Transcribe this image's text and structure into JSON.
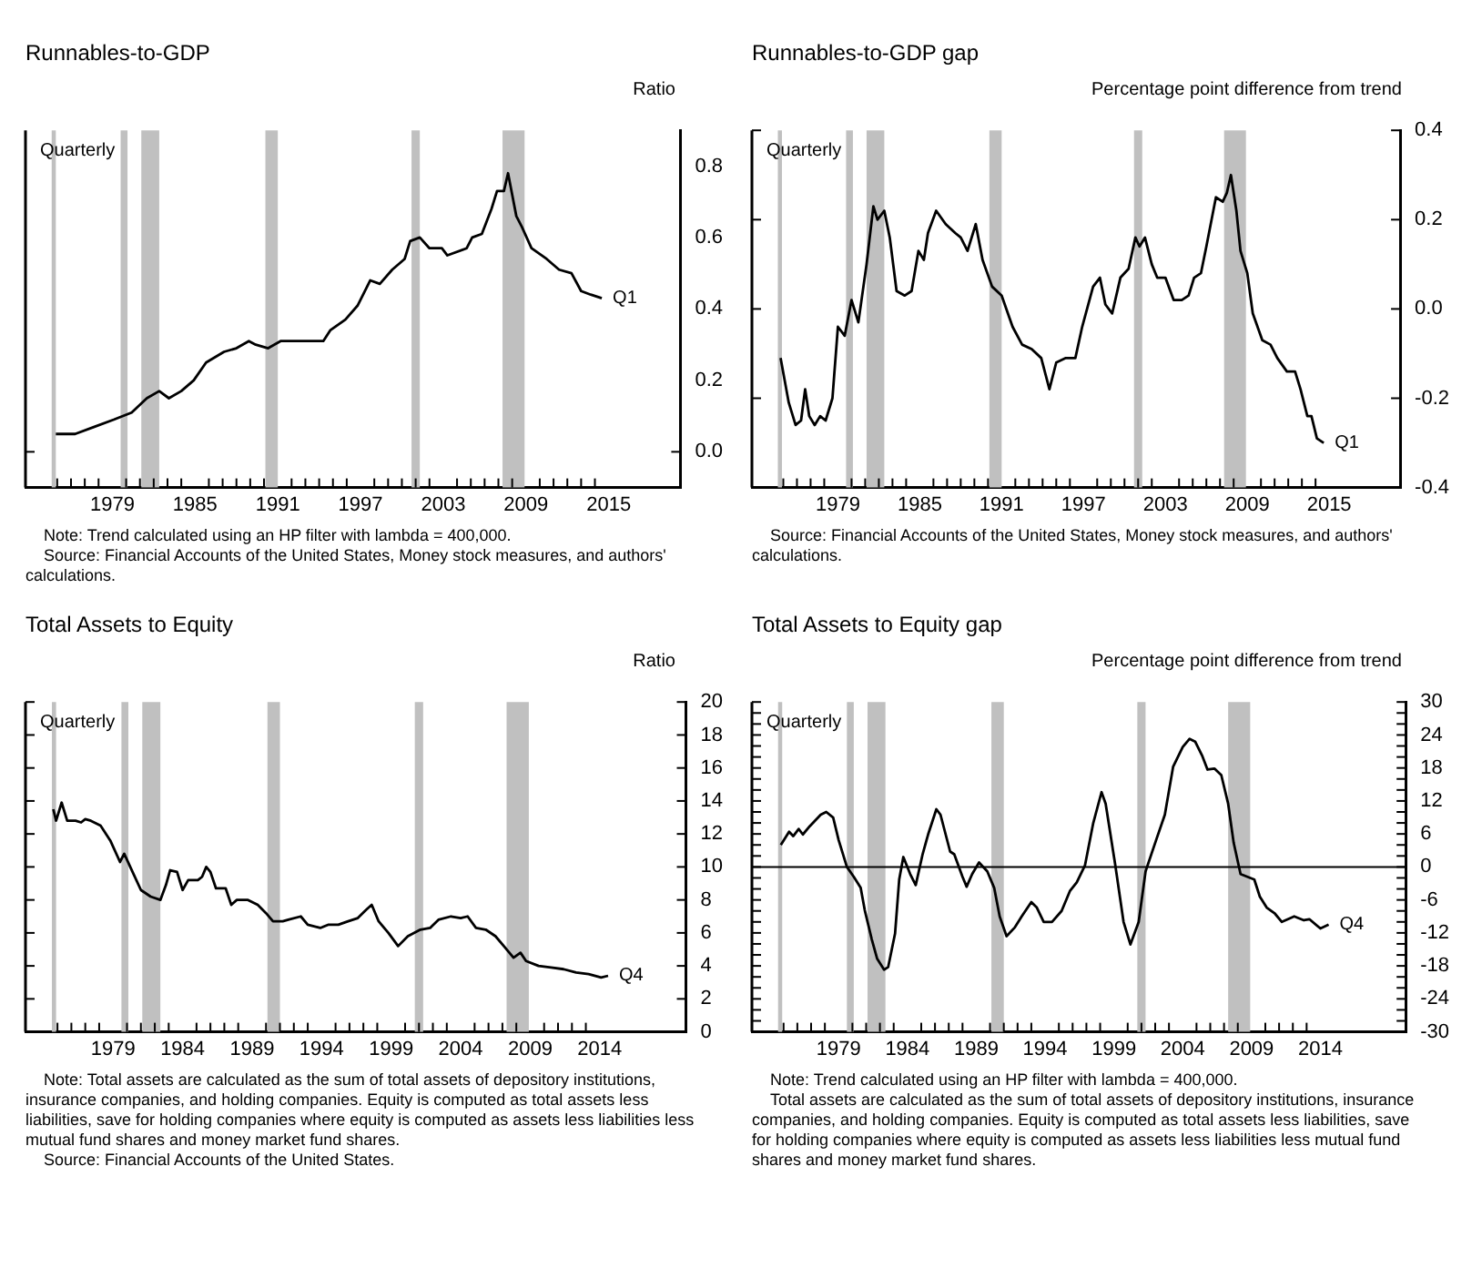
{
  "chart_data": [
    {
      "type": "line",
      "title": "Runnables-to-GDP",
      "ylabel": "Ratio",
      "color": "#000000",
      "annotations": [
        "Quarterly",
        "Q1",
        "Note: Trend calculated using an HP filter with lambda = 400,000.",
        "Source: Financial Accounts of the United States, Money stock measures, and authors' calculations."
      ],
      "x": [
        1974.9,
        1976.3,
        1977.7,
        1979.1,
        1980.4,
        1981.5,
        1982.4,
        1983.1,
        1984.0,
        1984.9,
        1985.8,
        1987.1,
        1988.0,
        1988.9,
        1989.4,
        1990.3,
        1991.2,
        1992.5,
        1993.4,
        1994.3,
        1994.8,
        1995.9,
        1996.8,
        1997.7,
        1998.4,
        1999.3,
        2000.2,
        2000.6,
        2001.3,
        2002.0,
        2002.9,
        2003.3,
        2004.7,
        2005.1,
        2005.8,
        2006.5,
        2006.9,
        2007.4,
        2007.7,
        2008.3,
        2008.7,
        2009.4,
        2010.5,
        2011.4,
        2012.3,
        2013.0,
        2013.7,
        2014.5
      ],
      "values": [
        0.05,
        0.05,
        0.07,
        0.09,
        0.11,
        0.15,
        0.17,
        0.15,
        0.17,
        0.2,
        0.25,
        0.28,
        0.29,
        0.31,
        0.3,
        0.29,
        0.31,
        0.31,
        0.31,
        0.31,
        0.34,
        0.37,
        0.41,
        0.48,
        0.47,
        0.51,
        0.54,
        0.59,
        0.6,
        0.57,
        0.57,
        0.55,
        0.57,
        0.6,
        0.61,
        0.68,
        0.73,
        0.73,
        0.78,
        0.66,
        0.63,
        0.57,
        0.54,
        0.51,
        0.5,
        0.45,
        0.44,
        0.43
      ],
      "xlim": [
        1972.7,
        2020.2
      ],
      "xticks": [
        {
          "value": 1975,
          "label": null
        },
        {
          "value": 1976,
          "label": null
        },
        {
          "value": 1977,
          "label": null
        },
        {
          "value": 1978,
          "label": null
        },
        1979,
        {
          "value": 1980,
          "label": null
        },
        {
          "value": 1981,
          "label": null
        },
        {
          "value": 1982,
          "label": null
        },
        {
          "value": 1983,
          "label": null
        },
        {
          "value": 1984,
          "label": null
        },
        1985,
        {
          "value": 1986,
          "label": null
        },
        {
          "value": 1987,
          "label": null
        },
        {
          "value": 1988,
          "label": null
        },
        {
          "value": 1989,
          "label": null
        },
        {
          "value": 1990,
          "label": null
        },
        1991,
        {
          "value": 1992,
          "label": null
        },
        {
          "value": 1993,
          "label": null
        },
        {
          "value": 1994,
          "label": null
        },
        {
          "value": 1995,
          "label": null
        },
        {
          "value": 1996,
          "label": null
        },
        1997,
        {
          "value": 1998,
          "label": null
        },
        {
          "value": 1999,
          "label": null
        },
        {
          "value": 2000,
          "label": null
        },
        {
          "value": 2001,
          "label": null
        },
        {
          "value": 2002,
          "label": null
        },
        2003,
        {
          "value": 2004,
          "label": null
        },
        {
          "value": 2005,
          "label": null
        },
        {
          "value": 2006,
          "label": null
        },
        {
          "value": 2007,
          "label": null
        },
        {
          "value": 2008,
          "label": null
        },
        2009,
        {
          "value": 2010,
          "label": null
        },
        {
          "value": 2011,
          "label": null
        },
        {
          "value": 2012,
          "label": null
        },
        {
          "value": 2013,
          "label": null
        },
        {
          "value": 2014,
          "label": null
        },
        2015
      ],
      "ylim": [
        -0.1,
        0.9
      ],
      "yticks": [
        {
          "value": 0,
          "label": "0.0"
        },
        0.2,
        0.4,
        0.6,
        0.8
      ],
      "bands": [
        {
          "axis": "x",
          "from": 1974.6,
          "to": 1974.9,
          "color": "#c0c0c0"
        },
        {
          "axis": "x",
          "from": 1979.6,
          "to": 1980.1,
          "color": "#c0c0c0"
        },
        {
          "axis": "x",
          "from": 1981.1,
          "to": 1982.4,
          "color": "#c0c0c0"
        },
        {
          "axis": "x",
          "from": 1990.1,
          "to": 1991.0,
          "color": "#c0c0c0"
        },
        {
          "axis": "x",
          "from": 2000.7,
          "to": 2001.3,
          "color": "#c0c0c0"
        },
        {
          "axis": "x",
          "from": 2007.3,
          "to": 2008.9,
          "color": "#c0c0c0"
        }
      ]
    },
    {
      "type": "line",
      "title": "Runnables-to-GDP gap",
      "ylabel": "Percentage point difference from trend",
      "color": "#000000",
      "annotations": [
        "Quarterly",
        "Q1",
        "Source: Financial Accounts of the United States, Money stock measures, and authors' calculations."
      ],
      "x": [
        1974.8,
        1975.4,
        1975.9,
        1976.3,
        1976.6,
        1976.9,
        1977.3,
        1977.7,
        1978.1,
        1978.6,
        1979.0,
        1979.5,
        1980.0,
        1980.5,
        1981.1,
        1981.6,
        1981.9,
        1982.4,
        1982.8,
        1983.3,
        1983.9,
        1984.4,
        1984.9,
        1985.3,
        1985.6,
        1986.2,
        1986.9,
        1987.6,
        1988.0,
        1988.5,
        1989.1,
        1989.6,
        1990.3,
        1991.0,
        1991.8,
        1992.5,
        1993.2,
        1993.9,
        1994.5,
        1995.0,
        1995.7,
        1996.4,
        1996.9,
        1997.7,
        1998.2,
        1998.6,
        1999.1,
        1999.7,
        2000.3,
        2000.8,
        2001.1,
        2001.5,
        2002.0,
        2002.4,
        2003.0,
        2003.6,
        2004.2,
        2004.7,
        2005.1,
        2005.6,
        2006.0,
        2006.7,
        2007.2,
        2007.5,
        2007.8,
        2008.2,
        2008.5,
        2009.0,
        2009.4,
        2010.1,
        2010.7,
        2011.2,
        2011.9,
        2012.5,
        2012.9,
        2013.4,
        2013.7,
        2014.1,
        2014.6
      ],
      "values": [
        -0.11,
        -0.21,
        -0.26,
        -0.25,
        -0.18,
        -0.24,
        -0.26,
        -0.24,
        -0.25,
        -0.2,
        -0.04,
        -0.06,
        0.02,
        -0.03,
        0.1,
        0.23,
        0.2,
        0.22,
        0.16,
        0.04,
        0.03,
        0.04,
        0.13,
        0.11,
        0.17,
        0.22,
        0.19,
        0.17,
        0.16,
        0.13,
        0.19,
        0.11,
        0.05,
        0.03,
        -0.04,
        -0.08,
        -0.09,
        -0.11,
        -0.18,
        -0.12,
        -0.11,
        -0.11,
        -0.04,
        0.05,
        0.07,
        0.01,
        -0.01,
        0.07,
        0.09,
        0.16,
        0.14,
        0.16,
        0.1,
        0.07,
        0.07,
        0.02,
        0.02,
        0.03,
        0.07,
        0.08,
        0.14,
        0.25,
        0.24,
        0.26,
        0.3,
        0.22,
        0.13,
        0.08,
        -0.01,
        -0.07,
        -0.08,
        -0.11,
        -0.14,
        -0.14,
        -0.18,
        -0.24,
        -0.24,
        -0.29,
        -0.3
      ],
      "xlim": [
        1972.7,
        2020.2
      ],
      "xticks": [
        {
          "value": 1975,
          "label": null
        },
        {
          "value": 1976,
          "label": null
        },
        {
          "value": 1977,
          "label": null
        },
        {
          "value": 1978,
          "label": null
        },
        1979,
        {
          "value": 1980,
          "label": null
        },
        {
          "value": 1981,
          "label": null
        },
        {
          "value": 1982,
          "label": null
        },
        {
          "value": 1983,
          "label": null
        },
        {
          "value": 1984,
          "label": null
        },
        1985,
        {
          "value": 1986,
          "label": null
        },
        {
          "value": 1987,
          "label": null
        },
        {
          "value": 1988,
          "label": null
        },
        {
          "value": 1989,
          "label": null
        },
        {
          "value": 1990,
          "label": null
        },
        1991,
        {
          "value": 1992,
          "label": null
        },
        {
          "value": 1993,
          "label": null
        },
        {
          "value": 1994,
          "label": null
        },
        {
          "value": 1995,
          "label": null
        },
        {
          "value": 1996,
          "label": null
        },
        1997,
        {
          "value": 1998,
          "label": null
        },
        {
          "value": 1999,
          "label": null
        },
        {
          "value": 2000,
          "label": null
        },
        {
          "value": 2001,
          "label": null
        },
        {
          "value": 2002,
          "label": null
        },
        2003,
        {
          "value": 2004,
          "label": null
        },
        {
          "value": 2005,
          "label": null
        },
        {
          "value": 2006,
          "label": null
        },
        {
          "value": 2007,
          "label": null
        },
        {
          "value": 2008,
          "label": null
        },
        2009,
        {
          "value": 2010,
          "label": null
        },
        {
          "value": 2011,
          "label": null
        },
        {
          "value": 2012,
          "label": null
        },
        {
          "value": 2013,
          "label": null
        },
        {
          "value": 2014,
          "label": null
        },
        2015
      ],
      "ylim": [
        -0.4,
        0.4
      ],
      "yticks": [
        -0.4,
        -0.2,
        {
          "value": 0,
          "label": "0.0"
        },
        0.2,
        0.4
      ],
      "bands": [
        {
          "axis": "x",
          "from": 1974.6,
          "to": 1974.9,
          "color": "#c0c0c0"
        },
        {
          "axis": "x",
          "from": 1979.6,
          "to": 1980.1,
          "color": "#c0c0c0"
        },
        {
          "axis": "x",
          "from": 1981.1,
          "to": 1982.4,
          "color": "#c0c0c0"
        },
        {
          "axis": "x",
          "from": 1990.1,
          "to": 1991.0,
          "color": "#c0c0c0"
        },
        {
          "axis": "x",
          "from": 2000.7,
          "to": 2001.3,
          "color": "#c0c0c0"
        },
        {
          "axis": "x",
          "from": 2007.3,
          "to": 2008.9,
          "color": "#c0c0c0"
        }
      ]
    },
    {
      "type": "line",
      "title": "Total Assets to Equity",
      "ylabel": "Ratio",
      "color": "#000000",
      "annotations": [
        "Quarterly",
        "Q4",
        "Note: Total assets are calculated as the sum of total assets of depository institutions, insurance companies, and holding companies. Equity is computed as total assets less liabilities, save for holding companies where equity is computed as assets less liabilities less mutual fund shares and money market fund shares.",
        "Source: Financial Accounts of the United States."
      ],
      "x": [
        1974.7,
        1974.9,
        1975.3,
        1975.7,
        1976.3,
        1976.7,
        1977.0,
        1977.4,
        1978.1,
        1978.8,
        1979.5,
        1979.8,
        1980.4,
        1981.0,
        1981.7,
        1982.4,
        1982.8,
        1983.1,
        1983.6,
        1984.0,
        1984.4,
        1985.1,
        1985.4,
        1985.7,
        1986.0,
        1986.4,
        1987.1,
        1987.5,
        1987.9,
        1988.7,
        1989.4,
        1990.0,
        1990.5,
        1991.2,
        1991.6,
        1992.5,
        1993.0,
        1993.9,
        1994.5,
        1995.2,
        1995.9,
        1996.6,
        1997.2,
        1997.6,
        1998.1,
        1998.8,
        1999.5,
        2000.2,
        2001.1,
        2001.8,
        2002.4,
        2003.3,
        2004.0,
        2004.5,
        2005.1,
        2005.8,
        2006.5,
        2007.2,
        2007.8,
        2008.3,
        2008.7,
        2009.6,
        2010.5,
        2011.4,
        2012.3,
        2013.2,
        2014.1,
        2014.6
      ],
      "values": [
        13.5,
        12.8,
        13.9,
        12.8,
        12.8,
        12.7,
        12.9,
        12.8,
        12.5,
        11.6,
        10.3,
        10.8,
        9.7,
        8.6,
        8.2,
        8.0,
        8.9,
        9.8,
        9.7,
        8.6,
        9.2,
        9.2,
        9.4,
        10.0,
        9.7,
        8.7,
        8.7,
        7.7,
        8.0,
        8.0,
        7.7,
        7.2,
        6.7,
        6.7,
        6.8,
        7.0,
        6.5,
        6.3,
        6.5,
        6.5,
        6.7,
        6.9,
        7.4,
        7.7,
        6.7,
        6.0,
        5.2,
        5.8,
        6.2,
        6.3,
        6.8,
        7.0,
        6.9,
        7.0,
        6.3,
        6.2,
        5.8,
        5.1,
        4.5,
        4.8,
        4.3,
        4.0,
        3.9,
        3.8,
        3.6,
        3.5,
        3.3,
        3.4
      ],
      "xlim": [
        1972.7,
        2020.2
      ],
      "xticks": [
        {
          "value": 1975,
          "label": null
        },
        {
          "value": 1976,
          "label": null
        },
        {
          "value": 1977,
          "label": null
        },
        {
          "value": 1978,
          "label": null
        },
        1979,
        {
          "value": 1980,
          "label": null
        },
        {
          "value": 1981,
          "label": null
        },
        {
          "value": 1982,
          "label": null
        },
        {
          "value": 1983,
          "label": null
        },
        1984,
        {
          "value": 1985,
          "label": null
        },
        {
          "value": 1986,
          "label": null
        },
        {
          "value": 1987,
          "label": null
        },
        {
          "value": 1988,
          "label": null
        },
        1989,
        {
          "value": 1990,
          "label": null
        },
        {
          "value": 1991,
          "label": null
        },
        {
          "value": 1992,
          "label": null
        },
        {
          "value": 1993,
          "label": null
        },
        1994,
        {
          "value": 1995,
          "label": null
        },
        {
          "value": 1996,
          "label": null
        },
        {
          "value": 1997,
          "label": null
        },
        {
          "value": 1998,
          "label": null
        },
        1999,
        {
          "value": 2000,
          "label": null
        },
        {
          "value": 2001,
          "label": null
        },
        {
          "value": 2002,
          "label": null
        },
        {
          "value": 2003,
          "label": null
        },
        2004,
        {
          "value": 2005,
          "label": null
        },
        {
          "value": 2006,
          "label": null
        },
        {
          "value": 2007,
          "label": null
        },
        {
          "value": 2008,
          "label": null
        },
        2009,
        {
          "value": 2010,
          "label": null
        },
        {
          "value": 2011,
          "label": null
        },
        {
          "value": 2012,
          "label": null
        },
        {
          "value": 2013,
          "label": null
        },
        2014
      ],
      "ylim": [
        0,
        20
      ],
      "yticks": [
        0,
        2,
        4,
        6,
        8,
        10,
        12,
        14,
        16,
        18,
        20
      ],
      "bands": [
        {
          "axis": "x",
          "from": 1974.6,
          "to": 1974.9,
          "color": "#c0c0c0"
        },
        {
          "axis": "x",
          "from": 1979.6,
          "to": 1980.1,
          "color": "#c0c0c0"
        },
        {
          "axis": "x",
          "from": 1981.1,
          "to": 1982.4,
          "color": "#c0c0c0"
        },
        {
          "axis": "x",
          "from": 1990.1,
          "to": 1991.0,
          "color": "#c0c0c0"
        },
        {
          "axis": "x",
          "from": 2000.7,
          "to": 2001.3,
          "color": "#c0c0c0"
        },
        {
          "axis": "x",
          "from": 2007.3,
          "to": 2008.9,
          "color": "#c0c0c0"
        }
      ]
    },
    {
      "type": "line",
      "title": "Total Assets to Equity gap",
      "ylabel": "Percentage point difference from trend",
      "color": "#000000",
      "annotations": [
        "Quarterly",
        "Q4",
        "Note: Trend calculated using an HP filter with lambda = 400,000.",
        "Total assets are calculated as the sum of total assets of depository institutions, insurance companies, and holding companies. Equity is computed as total assets less liabilities, save for holding companies where equity is computed as assets less liabilities less mutual fund shares and money market fund shares."
      ],
      "x": [
        1974.8,
        1975.4,
        1975.7,
        1976.1,
        1976.4,
        1976.9,
        1977.7,
        1978.1,
        1978.6,
        1979.0,
        1979.6,
        1980.1,
        1980.6,
        1980.9,
        1981.4,
        1981.8,
        1982.3,
        1982.6,
        1983.1,
        1983.4,
        1983.7,
        1984.2,
        1984.6,
        1985.1,
        1985.5,
        1986.1,
        1986.4,
        1987.1,
        1987.4,
        1988.0,
        1988.3,
        1988.7,
        1989.2,
        1989.8,
        1990.3,
        1990.7,
        1991.2,
        1991.8,
        1992.3,
        1993.0,
        1993.4,
        1993.9,
        1994.5,
        1995.2,
        1995.8,
        1996.3,
        1996.9,
        1997.5,
        1998.1,
        1998.4,
        1999.1,
        1999.7,
        2000.2,
        2000.8,
        2001.3,
        2002.0,
        2002.7,
        2003.3,
        2004.0,
        2004.5,
        2004.9,
        2005.4,
        2005.8,
        2006.3,
        2006.8,
        2007.3,
        2007.7,
        2008.2,
        2008.7,
        2009.2,
        2009.6,
        2010.1,
        2010.7,
        2011.2,
        2012.1,
        2012.8,
        2013.2,
        2014.0,
        2014.6
      ],
      "values": [
        4,
        6.4,
        5.6,
        6.9,
        5.9,
        7.4,
        9.5,
        10,
        9,
        4.9,
        0,
        -1.8,
        -3.8,
        -7.9,
        -13.1,
        -16.7,
        -18.7,
        -18.2,
        -12.1,
        -2.3,
        1.8,
        -1.3,
        -3.3,
        2.3,
        5.9,
        10.5,
        9.5,
        2.8,
        2.3,
        -1.8,
        -3.6,
        -1.3,
        0.8,
        -0.8,
        -3.8,
        -9,
        -12.6,
        -11,
        -9,
        -6.4,
        -7.4,
        -10,
        -10,
        -8,
        -4.4,
        -2.8,
        0.3,
        8,
        13.6,
        11.5,
        0.3,
        -10,
        -14.1,
        -10,
        -0.8,
        4.4,
        9.5,
        18.2,
        21.8,
        23.3,
        22.8,
        20.3,
        17.7,
        17.9,
        16.7,
        11.5,
        4.4,
        -1.3,
        -1.8,
        -2.3,
        -5.4,
        -7.4,
        -8.5,
        -10,
        -9,
        -9.7,
        -9.5,
        -11.2,
        -10.5
      ],
      "xlim": [
        1972.7,
        2020.2
      ],
      "xticks": [
        {
          "value": 1975,
          "label": null
        },
        {
          "value": 1976,
          "label": null
        },
        {
          "value": 1977,
          "label": null
        },
        {
          "value": 1978,
          "label": null
        },
        1979,
        {
          "value": 1980,
          "label": null
        },
        {
          "value": 1981,
          "label": null
        },
        {
          "value": 1982,
          "label": null
        },
        {
          "value": 1983,
          "label": null
        },
        1984,
        {
          "value": 1985,
          "label": null
        },
        {
          "value": 1986,
          "label": null
        },
        {
          "value": 1987,
          "label": null
        },
        {
          "value": 1988,
          "label": null
        },
        1989,
        {
          "value": 1990,
          "label": null
        },
        {
          "value": 1991,
          "label": null
        },
        {
          "value": 1992,
          "label": null
        },
        {
          "value": 1993,
          "label": null
        },
        1994,
        {
          "value": 1995,
          "label": null
        },
        {
          "value": 1996,
          "label": null
        },
        {
          "value": 1997,
          "label": null
        },
        {
          "value": 1998,
          "label": null
        },
        1999,
        {
          "value": 2000,
          "label": null
        },
        {
          "value": 2001,
          "label": null
        },
        {
          "value": 2002,
          "label": null
        },
        {
          "value": 2003,
          "label": null
        },
        2004,
        {
          "value": 2005,
          "label": null
        },
        {
          "value": 2006,
          "label": null
        },
        {
          "value": 2007,
          "label": null
        },
        {
          "value": 2008,
          "label": null
        },
        2009,
        {
          "value": 2010,
          "label": null
        },
        {
          "value": 2011,
          "label": null
        },
        {
          "value": 2012,
          "label": null
        },
        {
          "value": 2013,
          "label": null
        },
        2014
      ],
      "ylim": [
        -30,
        30
      ],
      "yticks": [
        -30,
        {
          "value": -28,
          "label": null
        },
        {
          "value": -26,
          "label": null
        },
        -24,
        {
          "value": -22,
          "label": null
        },
        {
          "value": -20,
          "label": null
        },
        -18,
        {
          "value": -16,
          "label": null
        },
        {
          "value": -14,
          "label": null
        },
        -12,
        {
          "value": -10,
          "label": null
        },
        {
          "value": -8,
          "label": null
        },
        -6,
        {
          "value": -4,
          "label": null
        },
        {
          "value": -2,
          "label": null
        },
        0,
        {
          "value": 2,
          "label": null
        },
        {
          "value": 4,
          "label": null
        },
        6,
        {
          "value": 8,
          "label": null
        },
        {
          "value": 10,
          "label": null
        },
        12,
        {
          "value": 14,
          "label": null
        },
        {
          "value": 16,
          "label": null
        },
        18,
        {
          "value": 20,
          "label": null
        },
        {
          "value": 22,
          "label": null
        },
        24,
        {
          "value": 26,
          "label": null
        },
        {
          "value": 28,
          "label": null
        },
        30
      ],
      "ref_lines": [
        {
          "axis": "y",
          "value": 0,
          "color": "#000000"
        }
      ],
      "bands": [
        {
          "axis": "x",
          "from": 1974.6,
          "to": 1974.9,
          "color": "#c0c0c0"
        },
        {
          "axis": "x",
          "from": 1979.6,
          "to": 1980.1,
          "color": "#c0c0c0"
        },
        {
          "axis": "x",
          "from": 1981.1,
          "to": 1982.4,
          "color": "#c0c0c0"
        },
        {
          "axis": "x",
          "from": 1990.1,
          "to": 1991.0,
          "color": "#c0c0c0"
        },
        {
          "axis": "x",
          "from": 2000.7,
          "to": 2001.3,
          "color": "#c0c0c0"
        },
        {
          "axis": "x",
          "from": 2007.3,
          "to": 2008.9,
          "color": "#c0c0c0"
        }
      ]
    }
  ]
}
